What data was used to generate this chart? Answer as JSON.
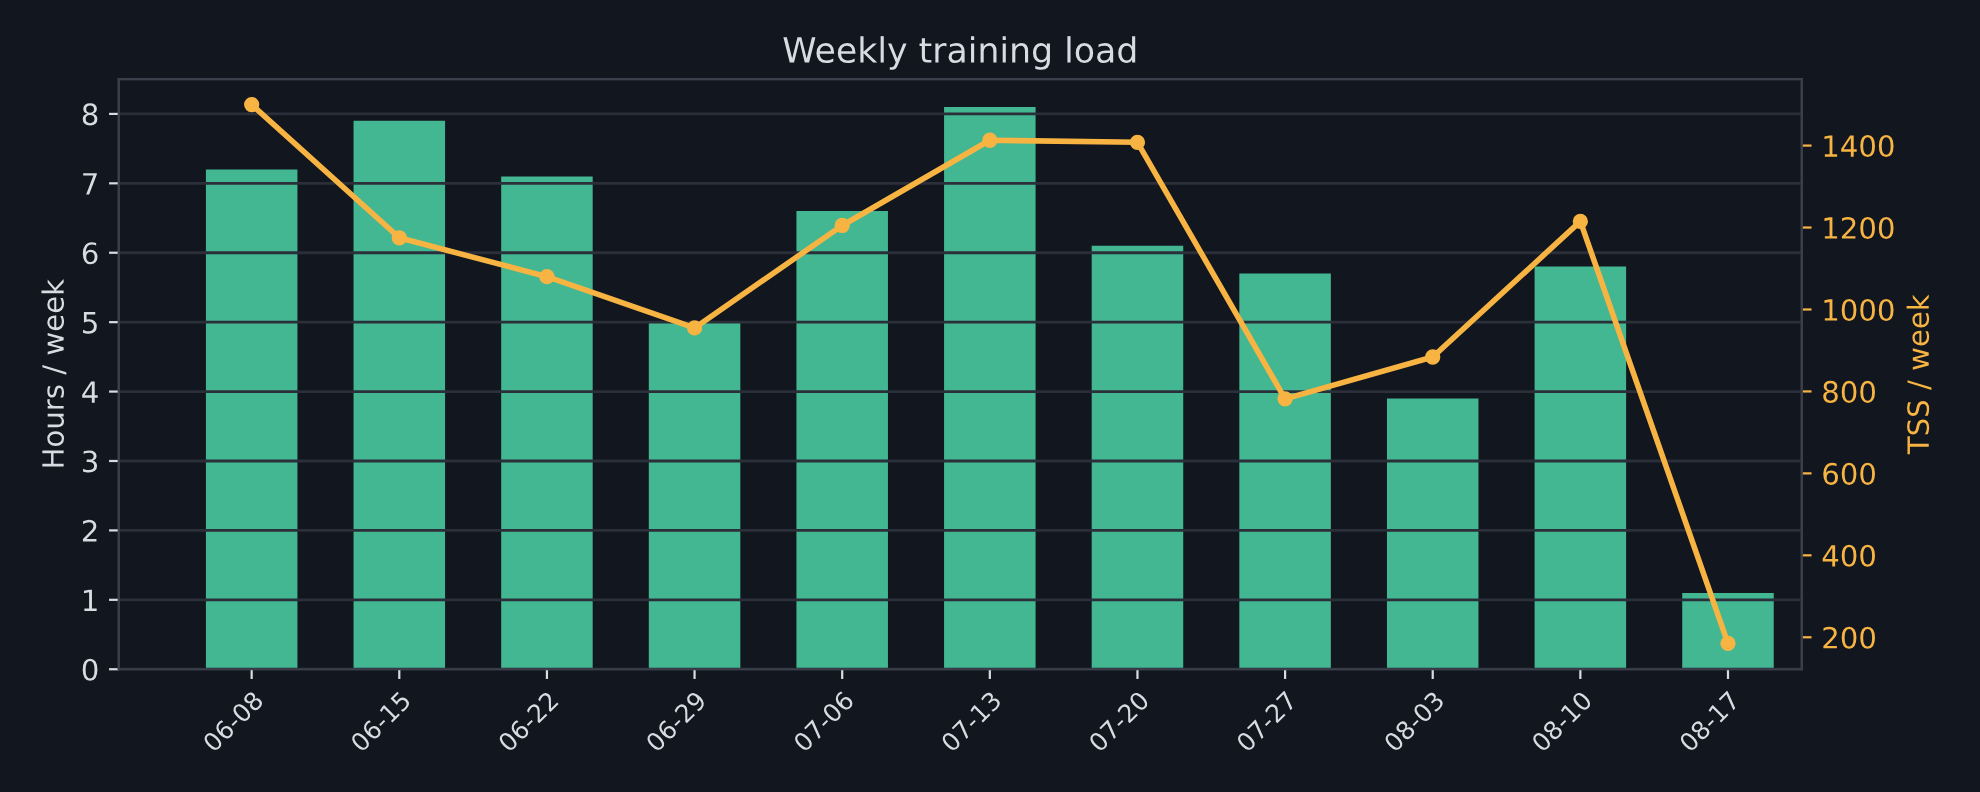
{
  "chart_data": {
    "type": "bar",
    "title": "Weekly training load",
    "ylabel": "Hours / week",
    "y2label": "TSS / week",
    "categories": [
      "06-08",
      "06-15",
      "06-22",
      "06-29",
      "07-06",
      "07-13",
      "07-20",
      "07-27",
      "08-03",
      "08-10",
      "08-17"
    ],
    "series": [
      {
        "color": "#43b692",
        "values": [
          7.2,
          7.9,
          7.1,
          5.0,
          6.6,
          8.1,
          6.1,
          5.7,
          3.9,
          5.8,
          1.1
        ]
      },
      {
        "type": "line",
        "axis": "y2",
        "color": "#f7b443",
        "marker": "circle",
        "values": [
          1500,
          1175,
          1080,
          955,
          1205,
          1413,
          1408,
          782,
          884,
          1215,
          185
        ]
      }
    ],
    "ylim": [
      0,
      8.5
    ],
    "yticks": [
      0,
      1,
      2,
      3,
      4,
      5,
      6,
      7,
      8
    ],
    "y2lim": [
      122,
      1562
    ],
    "y2ticks": [
      200,
      400,
      600,
      800,
      1000,
      1200,
      1400
    ],
    "grid": "y",
    "legend": false
  }
}
